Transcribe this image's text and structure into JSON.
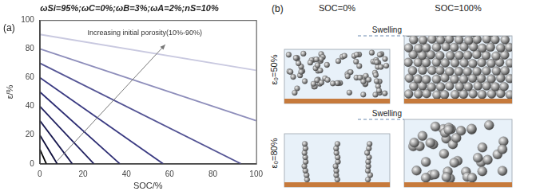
{
  "chart_data": {
    "type": "line",
    "title": "ωSi=95%;ωC=0%;ωB=3%;ωA=2%;nS=10%",
    "panel_label": "(a)",
    "x_label": "SOC/%",
    "y_label": "ε/%",
    "annotation": "Increasing initial porosity(10%-90%)",
    "xlim": [
      0,
      100
    ],
    "xticks": [
      0,
      20,
      40,
      60,
      80,
      100
    ],
    "ylim": [
      0,
      100
    ],
    "yticks": [
      0,
      20,
      40,
      60,
      80,
      100
    ],
    "grid": false,
    "series": [
      {
        "color": "#000000",
        "x": [
          0,
          3
        ],
        "values": [
          10,
          0
        ]
      },
      {
        "color": "#0e0e3a",
        "x": [
          0,
          8
        ],
        "values": [
          20,
          0
        ]
      },
      {
        "color": "#18184f",
        "x": [
          0,
          15
        ],
        "values": [
          30,
          0
        ]
      },
      {
        "color": "#20205f",
        "x": [
          0,
          25
        ],
        "values": [
          40,
          0
        ]
      },
      {
        "color": "#2b2b72",
        "x": [
          0,
          37
        ],
        "values": [
          50,
          0
        ]
      },
      {
        "color": "#3a3a82",
        "x": [
          0,
          57
        ],
        "values": [
          60,
          0
        ]
      },
      {
        "color": "#555595",
        "x": [
          0,
          93
        ],
        "values": [
          70,
          0
        ]
      },
      {
        "color": "#8e8ebb",
        "x": [
          0,
          100
        ],
        "values": [
          80,
          30
        ]
      },
      {
        "color": "#c9c9e0",
        "x": [
          0,
          100
        ],
        "values": [
          90,
          65
        ]
      }
    ]
  },
  "diagram": {
    "label": "(b)",
    "columns": [
      "SOC=0%",
      "SOC=100%"
    ],
    "rows": [
      {
        "label": "ε₀=50%",
        "annotation": "Swelling"
      },
      {
        "label": "ε₀=80%",
        "annotation": "Swelling"
      }
    ]
  }
}
